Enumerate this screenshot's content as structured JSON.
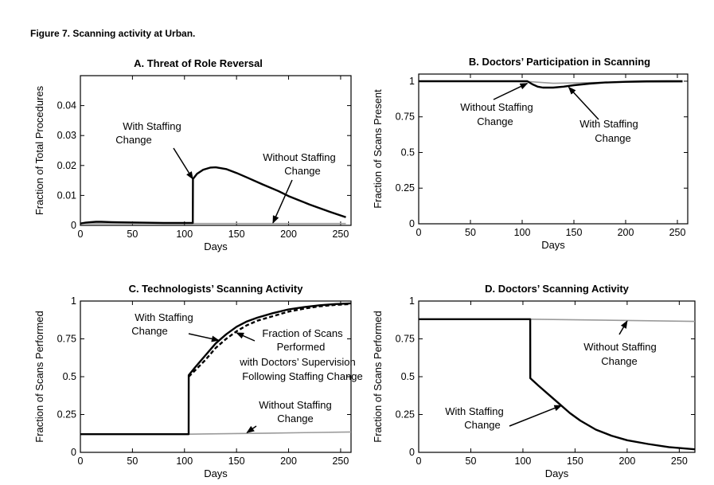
{
  "figure_title": "Figure 7. Scanning activity at Urban.",
  "chart_data": [
    {
      "type": "line",
      "title": "A. Threat of Role Reversal",
      "xlabel": "Days",
      "ylabel": "Fraction of Total Procedures",
      "xlim": [
        0,
        260
      ],
      "ylim": [
        0,
        0.05
      ],
      "xticks": [
        0,
        50,
        100,
        150,
        200,
        250
      ],
      "yticks": [
        0,
        0.01,
        0.02,
        0.03,
        0.04
      ],
      "ytick_labels": [
        "0",
        "0.01",
        "0.02",
        "0.03",
        "0.04"
      ],
      "grid": false,
      "series": [
        {
          "name": "With Staffing Change",
          "style": "solid",
          "color": "#000000",
          "x": [
            0,
            5,
            10,
            15,
            20,
            30,
            40,
            60,
            80,
            100,
            108,
            108.1,
            112,
            118,
            125,
            130,
            140,
            150,
            160,
            175,
            190,
            200,
            220,
            240,
            255
          ],
          "y": [
            0.0006,
            0.0009,
            0.0011,
            0.0012,
            0.0012,
            0.0011,
            0.001,
            0.0009,
            0.0008,
            0.0008,
            0.0008,
            0.0155,
            0.0172,
            0.0186,
            0.0193,
            0.0194,
            0.0188,
            0.0175,
            0.016,
            0.0137,
            0.0115,
            0.0098,
            0.007,
            0.0045,
            0.0027
          ]
        },
        {
          "name": "Without Staffing Change",
          "style": "gray",
          "color": "#9a9a9a",
          "x": [
            0,
            108,
            255
          ],
          "y": [
            0.0006,
            0.0006,
            0.0006
          ]
        }
      ],
      "annotations": [
        {
          "text": [
            "With Staffing",
            "Change"
          ],
          "points_to": [
            108,
            0.0155
          ]
        },
        {
          "text": [
            "Without Staffing",
            "Change"
          ],
          "points_to": [
            185,
            0.0008
          ]
        }
      ]
    },
    {
      "type": "line",
      "title": "B. Doctors’ Participation in Scanning",
      "xlabel": "Days",
      "ylabel": "Fraction of Scans Present",
      "xlim": [
        0,
        260
      ],
      "ylim": [
        0,
        1.05
      ],
      "xticks": [
        0,
        50,
        100,
        150,
        200,
        250
      ],
      "yticks": [
        0,
        0.25,
        0.5,
        0.75,
        1
      ],
      "ytick_labels": [
        "0",
        "0.25",
        "0.5",
        "0.75",
        "1"
      ],
      "grid": false,
      "series": [
        {
          "name": "With Staffing Change",
          "style": "solid",
          "color": "#000000",
          "x": [
            0,
            105,
            110,
            115,
            120,
            130,
            140,
            150,
            165,
            180,
            200,
            220,
            240,
            255
          ],
          "y": [
            1.0,
            1.0,
            0.978,
            0.962,
            0.955,
            0.955,
            0.962,
            0.972,
            0.983,
            0.991,
            0.996,
            0.999,
            1.0,
            1.0
          ]
        },
        {
          "name": "Without Staffing Change",
          "style": "gray",
          "color": "#9a9a9a",
          "x": [
            0,
            105,
            130,
            180,
            255
          ],
          "y": [
            1.0,
            0.998,
            0.985,
            0.992,
            0.995
          ]
        }
      ],
      "annotations": [
        {
          "text": [
            "Without Staffing",
            "Change"
          ],
          "points_to": [
            105,
            0.985
          ]
        },
        {
          "text": [
            "With Staffing",
            "Change"
          ],
          "points_to": [
            145,
            0.958
          ]
        }
      ]
    },
    {
      "type": "line",
      "title": "C. Technologists’ Scanning Activity",
      "xlabel": "Days",
      "ylabel": "Fraction of Scans Performed",
      "xlim": [
        0,
        260
      ],
      "ylim": [
        0,
        1
      ],
      "xticks": [
        0,
        50,
        100,
        150,
        200,
        250
      ],
      "yticks": [
        0,
        0.25,
        0.5,
        0.75,
        1
      ],
      "ytick_labels": [
        "0",
        "0.25",
        "0.5",
        "0.75",
        "1"
      ],
      "grid": false,
      "series": [
        {
          "name": "With Staffing Change",
          "style": "solid",
          "color": "#000000",
          "x": [
            0,
            104,
            104.1,
            110,
            120,
            130,
            140,
            150,
            160,
            170,
            185,
            200,
            215,
            230,
            245,
            260
          ],
          "y": [
            0.12,
            0.12,
            0.51,
            0.56,
            0.64,
            0.72,
            0.78,
            0.83,
            0.865,
            0.89,
            0.92,
            0.945,
            0.96,
            0.972,
            0.98,
            0.985
          ]
        },
        {
          "name": "Fraction of Scans Performed with Doctors’ Supervision Following Staffing Change",
          "style": "dashed",
          "color": "#000000",
          "x": [
            104,
            110,
            120,
            130,
            140,
            150,
            160,
            170,
            185,
            200,
            215,
            230,
            245,
            260
          ],
          "y": [
            0.5,
            0.54,
            0.61,
            0.69,
            0.75,
            0.8,
            0.84,
            0.87,
            0.9,
            0.93,
            0.95,
            0.965,
            0.975,
            0.98
          ]
        },
        {
          "name": "Without Staffing Change",
          "style": "gray",
          "color": "#9a9a9a",
          "x": [
            0,
            104,
            180,
            260
          ],
          "y": [
            0.12,
            0.12,
            0.127,
            0.135
          ]
        }
      ],
      "annotations": [
        {
          "text": [
            "With Staffing",
            "Change"
          ],
          "points_to": [
            133,
            0.74
          ]
        },
        {
          "text": [
            "Fraction of Scans",
            "Performed",
            "with Doctors’ Supervision",
            "Following Staffing Change"
          ],
          "points_to": [
            150,
            0.79
          ]
        },
        {
          "text": [
            "Without Staffing",
            "Change"
          ],
          "points_to": [
            160,
            0.13
          ]
        }
      ]
    },
    {
      "type": "line",
      "title": "D. Doctors’ Scanning Activity",
      "xlabel": "Days",
      "ylabel": "Fraction of Scans Performed",
      "xlim": [
        0,
        265
      ],
      "ylim": [
        0,
        1
      ],
      "xticks": [
        0,
        50,
        100,
        150,
        200,
        250
      ],
      "yticks": [
        0,
        0.25,
        0.5,
        0.75,
        1
      ],
      "ytick_labels": [
        "0",
        "0.25",
        "0.5",
        "0.75",
        "1"
      ],
      "grid": false,
      "series": [
        {
          "name": "With Staffing Change",
          "style": "solid",
          "color": "#000000",
          "x": [
            0,
            107,
            107.1,
            115,
            125,
            135,
            145,
            155,
            170,
            185,
            200,
            220,
            240,
            265
          ],
          "y": [
            0.88,
            0.88,
            0.49,
            0.44,
            0.38,
            0.32,
            0.26,
            0.21,
            0.15,
            0.11,
            0.08,
            0.055,
            0.035,
            0.02
          ]
        },
        {
          "name": "Without Staffing Change",
          "style": "gray",
          "color": "#9a9a9a",
          "x": [
            0,
            107,
            265
          ],
          "y": [
            0.88,
            0.88,
            0.865
          ]
        }
      ],
      "annotations": [
        {
          "text": [
            "Without Staffing",
            "Change"
          ],
          "points_to": [
            200,
            0.868
          ]
        },
        {
          "text": [
            "With Staffing",
            "Change"
          ],
          "points_to": [
            137,
            0.31
          ]
        }
      ]
    }
  ]
}
